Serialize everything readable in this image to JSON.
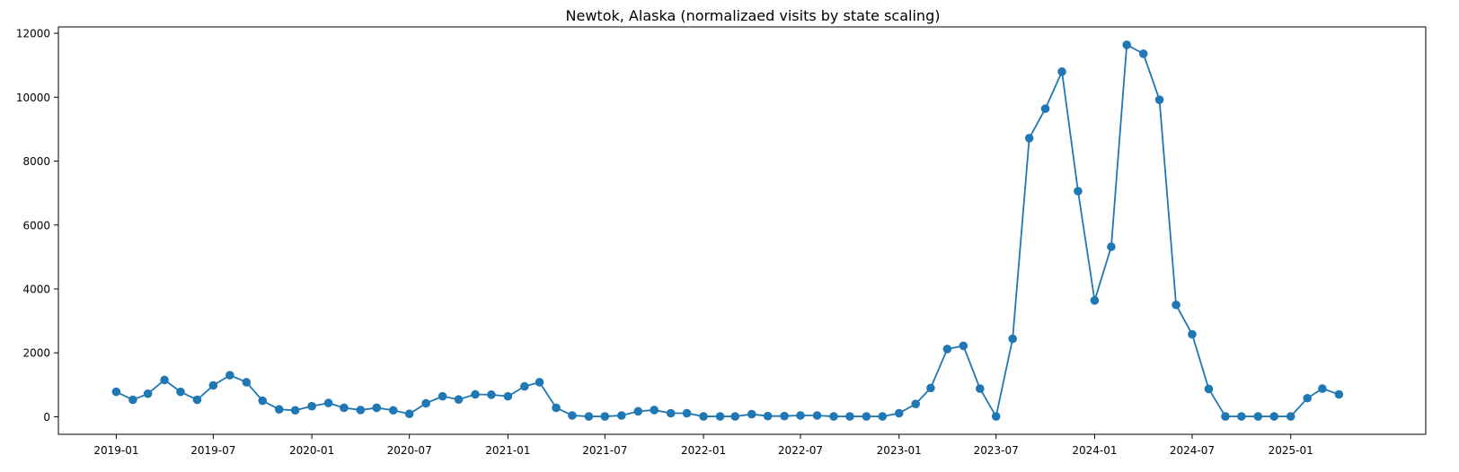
{
  "chart_data": {
    "type": "line",
    "title": "Newtok, Alaska (normalizaed visits by state scaling)",
    "xlabel": "",
    "ylabel": "",
    "x_range": [
      "2018-09-15",
      "2025-09-10"
    ],
    "ylim": [
      -550,
      12200
    ],
    "grid": false,
    "marker": "circle",
    "color": "#1f77b4",
    "x_ticks": [
      "2019-01",
      "2019-07",
      "2020-01",
      "2020-07",
      "2021-01",
      "2021-07",
      "2022-01",
      "2022-07",
      "2023-01",
      "2023-07",
      "2024-01",
      "2024-07",
      "2025-01"
    ],
    "y_ticks": [
      0,
      2000,
      4000,
      6000,
      8000,
      10000,
      12000
    ],
    "x": [
      "2019-01",
      "2019-02",
      "2019-03",
      "2019-04",
      "2019-05",
      "2019-06",
      "2019-07",
      "2019-08",
      "2019-09",
      "2019-10",
      "2019-11",
      "2019-12",
      "2020-01",
      "2020-02",
      "2020-03",
      "2020-04",
      "2020-05",
      "2020-06",
      "2020-07",
      "2020-08",
      "2020-09",
      "2020-10",
      "2020-11",
      "2020-12",
      "2021-01",
      "2021-02",
      "2021-03",
      "2021-04",
      "2021-05",
      "2021-06",
      "2021-07",
      "2021-08",
      "2021-09",
      "2021-10",
      "2021-11",
      "2021-12",
      "2022-01",
      "2022-02",
      "2022-03",
      "2022-04",
      "2022-05",
      "2022-06",
      "2022-07",
      "2022-08",
      "2022-09",
      "2022-10",
      "2022-11",
      "2022-12",
      "2023-01",
      "2023-02",
      "2023-03",
      "2023-04",
      "2023-05",
      "2023-06",
      "2023-07",
      "2023-08",
      "2023-09",
      "2023-10",
      "2023-11",
      "2023-12",
      "2024-01",
      "2024-02",
      "2024-03",
      "2024-04",
      "2024-05",
      "2024-06",
      "2024-07",
      "2024-08",
      "2024-09",
      "2024-10",
      "2024-11",
      "2024-12",
      "2025-01",
      "2025-02",
      "2025-03",
      "2025-04"
    ],
    "series": [
      {
        "values": [
          780,
          530,
          720,
          1150,
          780,
          530,
          980,
          1300,
          1080,
          500,
          230,
          200,
          330,
          430,
          280,
          210,
          280,
          200,
          90,
          420,
          640,
          540,
          700,
          690,
          640,
          950,
          1080,
          280,
          40,
          10,
          10,
          40,
          170,
          210,
          110,
          110,
          10,
          10,
          10,
          80,
          20,
          20,
          40,
          40,
          10,
          10,
          10,
          10,
          110,
          400,
          900,
          2120,
          2220,
          880,
          10,
          2440,
          8720,
          9640,
          10800,
          7060,
          3640,
          5320,
          11640,
          11360,
          9920,
          3500,
          2580,
          870,
          10,
          10,
          10,
          10,
          10,
          580,
          880,
          700
        ]
      }
    ]
  }
}
